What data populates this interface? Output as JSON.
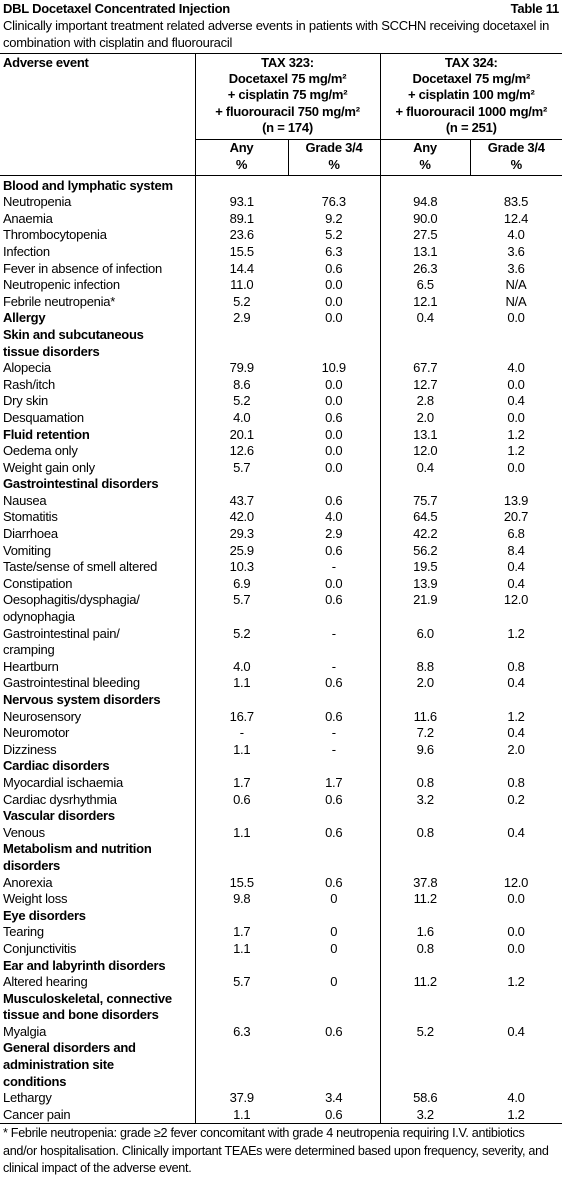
{
  "header": {
    "title": "DBL Docetaxel Concentrated Injection",
    "table_label": "Table 11",
    "caption": "Clinically important treatment related adverse events in patients with SCCHN receiving docetaxel in combination with cisplatin and fluorouracil"
  },
  "table": {
    "label_header": "Adverse event",
    "groups": [
      [
        "TAX 323:",
        "Docetaxel 75 mg/m²",
        "+ cisplatin 75 mg/m²",
        "+ fluorouracil 750 mg/m²",
        "(n = 174)"
      ],
      [
        "TAX 324:",
        "Docetaxel 75 mg/m²",
        "+ cisplatin 100 mg/m²",
        "+ fluorouracil 1000 mg/m²",
        "(n = 251)"
      ]
    ],
    "subheaders": [
      [
        "Any",
        "%"
      ],
      [
        "Grade 3/4",
        "%"
      ],
      [
        "Any",
        "%"
      ],
      [
        "Grade 3/4",
        "%"
      ]
    ],
    "sections": [
      {
        "title": "Blood and lymphatic system",
        "rows": [
          {
            "label": "Neutropenia",
            "cells": [
              "93.1",
              "76.3",
              "94.8",
              "83.5"
            ]
          },
          {
            "label": "Anaemia",
            "cells": [
              "89.1",
              "9.2",
              "90.0",
              "12.4"
            ]
          },
          {
            "label": "Thrombocytopenia",
            "cells": [
              "23.6",
              "5.2",
              "27.5",
              "4.0"
            ]
          },
          {
            "label": "Infection",
            "cells": [
              "15.5",
              "6.3",
              "13.1",
              "3.6"
            ]
          },
          {
            "label": "Fever in absence of infection",
            "cells": [
              "14.4",
              "0.6",
              "26.3",
              "3.6"
            ]
          },
          {
            "label": "Neutropenic infection",
            "cells": [
              "11.0",
              "0.0",
              "6.5",
              "N/A"
            ]
          },
          {
            "label": "Febrile neutropenia*",
            "cells": [
              "5.2",
              "0.0",
              "12.1",
              "N/A"
            ]
          }
        ]
      },
      {
        "title": "Allergy",
        "cells": [
          "2.9",
          "0.0",
          "0.4",
          "0.0"
        ],
        "rows": []
      },
      {
        "title": [
          "Skin and subcutaneous",
          "tissue disorders"
        ],
        "rows": [
          {
            "label": "Alopecia",
            "cells": [
              "79.9",
              "10.9",
              "67.7",
              "4.0"
            ]
          },
          {
            "label": "Rash/itch",
            "cells": [
              "8.6",
              "0.0",
              "12.7",
              "0.0"
            ]
          },
          {
            "label": "Dry skin",
            "cells": [
              "5.2",
              "0.0",
              "2.8",
              "0.4"
            ]
          },
          {
            "label": "Desquamation",
            "cells": [
              "4.0",
              "0.6",
              "2.0",
              "0.0"
            ]
          }
        ]
      },
      {
        "title": "Fluid retention",
        "cells": [
          "20.1",
          "0.0",
          "13.1",
          "1.2"
        ],
        "rows": [
          {
            "label": "Oedema only",
            "cells": [
              "12.6",
              "0.0",
              "12.0",
              "1.2"
            ]
          },
          {
            "label": "Weight gain only",
            "cells": [
              "5.7",
              "0.0",
              "0.4",
              "0.0"
            ]
          }
        ]
      },
      {
        "title": "Gastrointestinal disorders",
        "rows": [
          {
            "label": "Nausea",
            "cells": [
              "43.7",
              "0.6",
              "75.7",
              "13.9"
            ]
          },
          {
            "label": "Stomatitis",
            "cells": [
              "42.0",
              "4.0",
              "64.5",
              "20.7"
            ]
          },
          {
            "label": "Diarrhoea",
            "cells": [
              "29.3",
              "2.9",
              "42.2",
              "6.8"
            ]
          },
          {
            "label": "Vomiting",
            "cells": [
              "25.9",
              "0.6",
              "56.2",
              "8.4"
            ]
          },
          {
            "label": "Taste/sense of smell altered",
            "cells": [
              "10.3",
              "-",
              "19.5",
              "0.4"
            ]
          },
          {
            "label": "Constipation",
            "cells": [
              "6.9",
              "0.0",
              "13.9",
              "0.4"
            ]
          },
          {
            "label": [
              "Oesophagitis/dysphagia/",
              "odynophagia"
            ],
            "cells": [
              "5.7",
              "0.6",
              "21.9",
              "12.0"
            ]
          },
          {
            "label": [
              "Gastrointestinal pain/",
              "cramping"
            ],
            "cells": [
              "5.2",
              "-",
              "6.0",
              "1.2"
            ]
          },
          {
            "label": "Heartburn",
            "cells": [
              "4.0",
              "-",
              "8.8",
              "0.8"
            ]
          },
          {
            "label": "Gastrointestinal bleeding",
            "cells": [
              "1.1",
              "0.6",
              "2.0",
              "0.4"
            ]
          }
        ]
      },
      {
        "title": "Nervous system disorders",
        "rows": [
          {
            "label": "Neurosensory",
            "cells": [
              "16.7",
              "0.6",
              "11.6",
              "1.2"
            ]
          },
          {
            "label": "Neuromotor",
            "cells": [
              "-",
              "-",
              "7.2",
              "0.4"
            ]
          },
          {
            "label": "Dizziness",
            "cells": [
              "1.1",
              "-",
              "9.6",
              "2.0"
            ]
          }
        ]
      },
      {
        "title": "Cardiac disorders",
        "rows": [
          {
            "label": "Myocardial ischaemia",
            "cells": [
              "1.7",
              "1.7",
              "0.8",
              "0.8"
            ]
          },
          {
            "label": "Cardiac dysrhythmia",
            "cells": [
              "0.6",
              "0.6",
              "3.2",
              "0.2"
            ]
          }
        ]
      },
      {
        "title": "Vascular disorders",
        "rows": [
          {
            "label": "Venous",
            "cells": [
              "1.1",
              "0.6",
              "0.8",
              "0.4"
            ]
          }
        ]
      },
      {
        "title": [
          "Metabolism and nutrition",
          "disorders"
        ],
        "rows": [
          {
            "label": "Anorexia",
            "cells": [
              "15.5",
              "0.6",
              "37.8",
              "12.0"
            ]
          },
          {
            "label": "Weight loss",
            "cells": [
              "9.8",
              "0",
              "11.2",
              "0.0"
            ]
          }
        ]
      },
      {
        "title": "Eye disorders",
        "rows": [
          {
            "label": "Tearing",
            "cells": [
              "1.7",
              "0",
              "1.6",
              "0.0"
            ]
          },
          {
            "label": "Conjunctivitis",
            "cells": [
              "1.1",
              "0",
              "0.8",
              "0.0"
            ]
          }
        ]
      },
      {
        "title": "Ear and labyrinth disorders",
        "rows": [
          {
            "label": "Altered hearing",
            "cells": [
              "5.7",
              "0",
              "11.2",
              "1.2"
            ]
          }
        ]
      },
      {
        "title": [
          "Musculoskeletal, connective",
          "tissue and bone disorders"
        ],
        "rows": [
          {
            "label": "Myalgia",
            "cells": [
              "6.3",
              "0.6",
              "5.2",
              "0.4"
            ]
          }
        ]
      },
      {
        "title": [
          "General disorders and",
          "administration site",
          "conditions"
        ],
        "rows": [
          {
            "label": "Lethargy",
            "cells": [
              "37.9",
              "3.4",
              "58.6",
              "4.0"
            ]
          },
          {
            "label": "Cancer pain",
            "cells": [
              "1.1",
              "0.6",
              "3.2",
              "1.2"
            ]
          }
        ]
      }
    ]
  },
  "footnote": "* Febrile neutropenia: grade ≥2 fever concomitant with grade 4 neutropenia requiring I.V. antibiotics and/or hospitalisation. Clinically important TEAEs were determined based upon frequency, severity, and clinical impact of the adverse event."
}
